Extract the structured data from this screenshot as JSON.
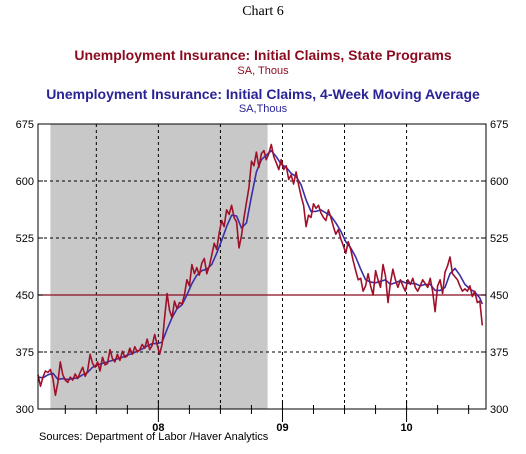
{
  "chart_label": "Chart 6",
  "source": "Sources:  Department of Labor /Haver Analytics",
  "colors": {
    "claims": "#a0102a",
    "average": "#3a2fa8",
    "reference": "#8b0a1e",
    "recession": "#c8c8c8",
    "grid": "#000000"
  },
  "chart_data": {
    "type": "line",
    "title": "Unemployment Insurance: Initial Claims, State Programs",
    "subtitle": "SA, Thous",
    "title2": "Unemployment Insurance: Initial Claims, 4-Week Moving Average",
    "subtitle2": "SA,Thous",
    "ylim": [
      300,
      675
    ],
    "y_ticks": [
      300,
      375,
      450,
      525,
      600,
      675
    ],
    "x_tick_labels": [
      {
        "label": "08",
        "t": 2008.0
      },
      {
        "label": "09",
        "t": 2009.0
      },
      {
        "label": "10",
        "t": 2010.0
      }
    ],
    "xlim": [
      2007.03,
      2010.64
    ],
    "x_minor_ticks": [
      2007.25,
      2007.5,
      2007.75,
      2008.25,
      2008.5,
      2008.75,
      2009.25,
      2009.5,
      2009.75,
      2010.25,
      2010.5
    ],
    "x_gridlines": [
      2007.5,
      2008.0,
      2008.5,
      2009.0,
      2009.5,
      2010.0
    ],
    "y_gridlines": [
      375,
      450,
      525,
      600
    ],
    "reference_line": 450,
    "recession": [
      2007.13,
      2008.88
    ],
    "series": [
      {
        "name": "Unemployment Insurance: Initial Claims, State Programs",
        "color_key": "claims",
        "points": [
          [
            2007.03,
            345
          ],
          [
            2007.05,
            330
          ],
          [
            2007.07,
            342
          ],
          [
            2007.09,
            350
          ],
          [
            2007.11,
            348
          ],
          [
            2007.13,
            352
          ],
          [
            2007.15,
            340
          ],
          [
            2007.17,
            318
          ],
          [
            2007.19,
            335
          ],
          [
            2007.21,
            362
          ],
          [
            2007.23,
            345
          ],
          [
            2007.25,
            338
          ],
          [
            2007.27,
            335
          ],
          [
            2007.29,
            342
          ],
          [
            2007.31,
            338
          ],
          [
            2007.33,
            346
          ],
          [
            2007.35,
            340
          ],
          [
            2007.37,
            348
          ],
          [
            2007.39,
            355
          ],
          [
            2007.41,
            343
          ],
          [
            2007.43,
            350
          ],
          [
            2007.45,
            372
          ],
          [
            2007.47,
            360
          ],
          [
            2007.49,
            355
          ],
          [
            2007.51,
            362
          ],
          [
            2007.53,
            350
          ],
          [
            2007.55,
            368
          ],
          [
            2007.57,
            358
          ],
          [
            2007.59,
            360
          ],
          [
            2007.61,
            378
          ],
          [
            2007.63,
            366
          ],
          [
            2007.65,
            362
          ],
          [
            2007.67,
            372
          ],
          [
            2007.69,
            364
          ],
          [
            2007.71,
            376
          ],
          [
            2007.73,
            368
          ],
          [
            2007.75,
            370
          ],
          [
            2007.77,
            380
          ],
          [
            2007.79,
            372
          ],
          [
            2007.81,
            382
          ],
          [
            2007.83,
            375
          ],
          [
            2007.85,
            378
          ],
          [
            2007.87,
            385
          ],
          [
            2007.89,
            380
          ],
          [
            2007.91,
            392
          ],
          [
            2007.93,
            378
          ],
          [
            2007.95,
            384
          ],
          [
            2007.97,
            398
          ],
          [
            2007.99,
            385
          ],
          [
            2008.01,
            372
          ],
          [
            2008.03,
            385
          ],
          [
            2008.05,
            420
          ],
          [
            2008.07,
            452
          ],
          [
            2008.09,
            430
          ],
          [
            2008.11,
            420
          ],
          [
            2008.13,
            442
          ],
          [
            2008.15,
            432
          ],
          [
            2008.17,
            440
          ],
          [
            2008.19,
            438
          ],
          [
            2008.21,
            450
          ],
          [
            2008.23,
            470
          ],
          [
            2008.25,
            462
          ],
          [
            2008.27,
            490
          ],
          [
            2008.29,
            478
          ],
          [
            2008.31,
            486
          ],
          [
            2008.33,
            476
          ],
          [
            2008.35,
            492
          ],
          [
            2008.37,
            498
          ],
          [
            2008.39,
            478
          ],
          [
            2008.41,
            488
          ],
          [
            2008.43,
            502
          ],
          [
            2008.45,
            518
          ],
          [
            2008.47,
            510
          ],
          [
            2008.49,
            532
          ],
          [
            2008.51,
            548
          ],
          [
            2008.53,
            540
          ],
          [
            2008.55,
            562
          ],
          [
            2008.57,
            556
          ],
          [
            2008.59,
            568
          ],
          [
            2008.61,
            552
          ],
          [
            2008.63,
            546
          ],
          [
            2008.65,
            512
          ],
          [
            2008.67,
            528
          ],
          [
            2008.69,
            552
          ],
          [
            2008.71,
            572
          ],
          [
            2008.73,
            592
          ],
          [
            2008.75,
            626
          ],
          [
            2008.77,
            620
          ],
          [
            2008.79,
            638
          ],
          [
            2008.81,
            618
          ],
          [
            2008.83,
            636
          ],
          [
            2008.85,
            640
          ],
          [
            2008.87,
            628
          ],
          [
            2008.89,
            636
          ],
          [
            2008.91,
            648
          ],
          [
            2008.93,
            632
          ],
          [
            2008.95,
            624
          ],
          [
            2008.97,
            615
          ],
          [
            2008.99,
            628
          ],
          [
            2009.01,
            615
          ],
          [
            2009.03,
            620
          ],
          [
            2009.05,
            602
          ],
          [
            2009.07,
            608
          ],
          [
            2009.09,
            596
          ],
          [
            2009.11,
            612
          ],
          [
            2009.13,
            595
          ],
          [
            2009.15,
            580
          ],
          [
            2009.17,
            568
          ],
          [
            2009.19,
            540
          ],
          [
            2009.21,
            555
          ],
          [
            2009.23,
            552
          ],
          [
            2009.25,
            570
          ],
          [
            2009.27,
            564
          ],
          [
            2009.29,
            568
          ],
          [
            2009.31,
            558
          ],
          [
            2009.33,
            552
          ],
          [
            2009.35,
            548
          ],
          [
            2009.37,
            562
          ],
          [
            2009.39,
            552
          ],
          [
            2009.41,
            540
          ],
          [
            2009.43,
            530
          ],
          [
            2009.45,
            536
          ],
          [
            2009.47,
            524
          ],
          [
            2009.49,
            515
          ],
          [
            2009.51,
            505
          ],
          [
            2009.53,
            520
          ],
          [
            2009.55,
            510
          ],
          [
            2009.57,
            495
          ],
          [
            2009.59,
            482
          ],
          [
            2009.61,
            470
          ],
          [
            2009.63,
            472
          ],
          [
            2009.65,
            455
          ],
          [
            2009.67,
            462
          ],
          [
            2009.69,
            478
          ],
          [
            2009.71,
            462
          ],
          [
            2009.73,
            450
          ],
          [
            2009.75,
            482
          ],
          [
            2009.77,
            470
          ],
          [
            2009.79,
            460
          ],
          [
            2009.81,
            490
          ],
          [
            2009.83,
            475
          ],
          [
            2009.85,
            440
          ],
          [
            2009.87,
            466
          ],
          [
            2009.89,
            484
          ],
          [
            2009.91,
            470
          ],
          [
            2009.93,
            460
          ],
          [
            2009.95,
            470
          ],
          [
            2009.97,
            462
          ],
          [
            2009.99,
            455
          ],
          [
            2010.01,
            470
          ],
          [
            2010.03,
            464
          ],
          [
            2010.05,
            472
          ],
          [
            2010.07,
            460
          ],
          [
            2010.09,
            455
          ],
          [
            2010.11,
            462
          ],
          [
            2010.13,
            470
          ],
          [
            2010.15,
            465
          ],
          [
            2010.17,
            460
          ],
          [
            2010.19,
            472
          ],
          [
            2010.21,
            455
          ],
          [
            2010.23,
            428
          ],
          [
            2010.25,
            462
          ],
          [
            2010.27,
            470
          ],
          [
            2010.29,
            452
          ],
          [
            2010.31,
            480
          ],
          [
            2010.33,
            488
          ],
          [
            2010.35,
            500
          ],
          [
            2010.37,
            478
          ],
          [
            2010.39,
            474
          ],
          [
            2010.41,
            470
          ],
          [
            2010.43,
            462
          ],
          [
            2010.45,
            455
          ],
          [
            2010.47,
            458
          ],
          [
            2010.49,
            455
          ],
          [
            2010.51,
            462
          ],
          [
            2010.53,
            448
          ],
          [
            2010.55,
            455
          ],
          [
            2010.57,
            440
          ],
          [
            2010.59,
            442
          ],
          [
            2010.61,
            410
          ]
        ]
      },
      {
        "name": "Unemployment Insurance: Initial Claims, 4-Week Moving Average",
        "color_key": "average",
        "points": [
          [
            2007.03,
            342
          ],
          [
            2007.07,
            341
          ],
          [
            2007.11,
            345
          ],
          [
            2007.15,
            347
          ],
          [
            2007.19,
            339
          ],
          [
            2007.23,
            340
          ],
          [
            2007.27,
            339
          ],
          [
            2007.31,
            340
          ],
          [
            2007.35,
            341
          ],
          [
            2007.39,
            345
          ],
          [
            2007.43,
            348
          ],
          [
            2007.47,
            355
          ],
          [
            2007.51,
            358
          ],
          [
            2007.55,
            360
          ],
          [
            2007.59,
            362
          ],
          [
            2007.63,
            364
          ],
          [
            2007.67,
            366
          ],
          [
            2007.71,
            368
          ],
          [
            2007.75,
            371
          ],
          [
            2007.79,
            373
          ],
          [
            2007.83,
            376
          ],
          [
            2007.87,
            379
          ],
          [
            2007.91,
            383
          ],
          [
            2007.95,
            386
          ],
          [
            2007.99,
            386
          ],
          [
            2008.03,
            388
          ],
          [
            2008.07,
            405
          ],
          [
            2008.11,
            420
          ],
          [
            2008.15,
            432
          ],
          [
            2008.19,
            437
          ],
          [
            2008.23,
            450
          ],
          [
            2008.27,
            465
          ],
          [
            2008.31,
            476
          ],
          [
            2008.35,
            482
          ],
          [
            2008.39,
            484
          ],
          [
            2008.43,
            490
          ],
          [
            2008.47,
            505
          ],
          [
            2008.51,
            522
          ],
          [
            2008.55,
            540
          ],
          [
            2008.59,
            555
          ],
          [
            2008.63,
            554
          ],
          [
            2008.67,
            538
          ],
          [
            2008.71,
            545
          ],
          [
            2008.75,
            580
          ],
          [
            2008.79,
            612
          ],
          [
            2008.83,
            628
          ],
          [
            2008.87,
            634
          ],
          [
            2008.91,
            640
          ],
          [
            2008.95,
            632
          ],
          [
            2008.99,
            622
          ],
          [
            2009.03,
            618
          ],
          [
            2009.07,
            610
          ],
          [
            2009.11,
            606
          ],
          [
            2009.15,
            595
          ],
          [
            2009.19,
            575
          ],
          [
            2009.23,
            560
          ],
          [
            2009.27,
            560
          ],
          [
            2009.31,
            562
          ],
          [
            2009.35,
            558
          ],
          [
            2009.39,
            554
          ],
          [
            2009.43,
            545
          ],
          [
            2009.47,
            534
          ],
          [
            2009.51,
            520
          ],
          [
            2009.55,
            512
          ],
          [
            2009.59,
            500
          ],
          [
            2009.63,
            484
          ],
          [
            2009.67,
            470
          ],
          [
            2009.71,
            467
          ],
          [
            2009.75,
            466
          ],
          [
            2009.79,
            468
          ],
          [
            2009.83,
            470
          ],
          [
            2009.87,
            464
          ],
          [
            2009.91,
            466
          ],
          [
            2009.95,
            469
          ],
          [
            2009.99,
            466
          ],
          [
            2010.03,
            465
          ],
          [
            2010.07,
            465
          ],
          [
            2010.11,
            462
          ],
          [
            2010.15,
            464
          ],
          [
            2010.19,
            464
          ],
          [
            2010.23,
            456
          ],
          [
            2010.27,
            456
          ],
          [
            2010.31,
            460
          ],
          [
            2010.35,
            478
          ],
          [
            2010.39,
            485
          ],
          [
            2010.43,
            476
          ],
          [
            2010.47,
            464
          ],
          [
            2010.51,
            458
          ],
          [
            2010.55,
            454
          ],
          [
            2010.59,
            446
          ],
          [
            2010.61,
            438
          ]
        ]
      }
    ]
  }
}
